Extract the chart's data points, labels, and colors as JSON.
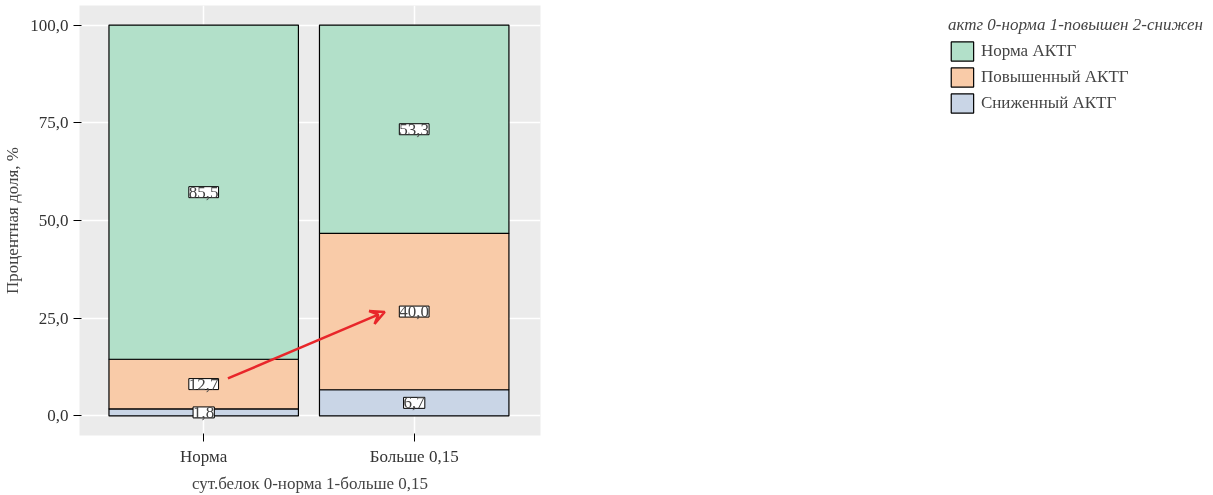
{
  "chart_data": {
    "type": "bar",
    "stacked": true,
    "xlabel": "сут.белок 0-норма 1-больше 0,15",
    "ylabel": "Процентная доля, %",
    "legend_title": "актг 0-норма 1-повышен 2-снижен",
    "categories": [
      "Норма",
      "Больше 0,15"
    ],
    "series": [
      {
        "name": "Сниженный АКТГ",
        "color": "#c9d5e6",
        "values": [
          1.8,
          6.7
        ],
        "value_labels": [
          "1,8",
          "6,7"
        ]
      },
      {
        "name": "Повышенный АКТГ",
        "color": "#f9cba8",
        "values": [
          12.7,
          40.0
        ],
        "value_labels": [
          "12,7",
          "40,0"
        ]
      },
      {
        "name": "Норма АКТГ",
        "color": "#b2e0c9",
        "values": [
          85.5,
          53.3
        ],
        "value_labels": [
          "85,5",
          "53,3"
        ]
      }
    ],
    "ylim": [
      -5,
      105
    ],
    "yticks": [
      {
        "value": 0,
        "label": "0,0"
      },
      {
        "value": 25,
        "label": "25,0"
      },
      {
        "value": 50,
        "label": "50,0"
      },
      {
        "value": 75,
        "label": "75,0"
      },
      {
        "value": 100,
        "label": "100,0"
      }
    ],
    "grid": true,
    "legend": "right"
  }
}
